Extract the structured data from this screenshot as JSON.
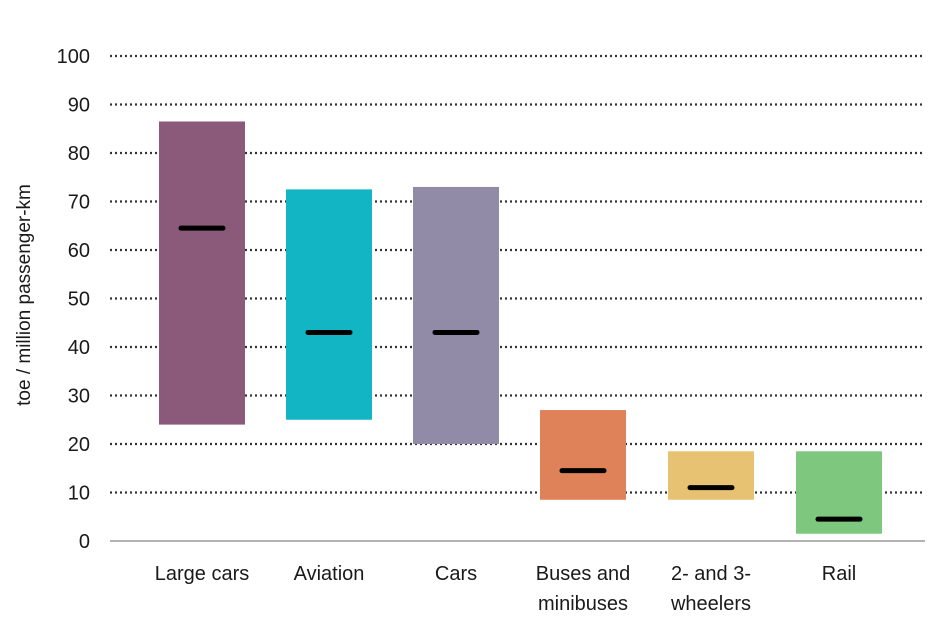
{
  "chart_data": {
    "type": "bar",
    "subtype": "range-with-midpoint",
    "ylabel": "toe / million passenger-km",
    "ylim": [
      0,
      100
    ],
    "yticks": [
      0,
      10,
      20,
      30,
      40,
      50,
      60,
      70,
      80,
      90,
      100
    ],
    "grid": "horizontal-dotted",
    "categories": [
      [
        "Large cars"
      ],
      [
        "Aviation"
      ],
      [
        "Cars"
      ],
      [
        "Buses and",
        "minibuses"
      ],
      [
        "2- and 3-",
        "wheelers"
      ],
      [
        "Rail"
      ]
    ],
    "series": [
      {
        "low": 24,
        "high": 86.5,
        "mid": 64.5,
        "color": "#8b5a7a"
      },
      {
        "low": 25,
        "high": 72.5,
        "mid": 43,
        "color": "#12b5c4"
      },
      {
        "low": 20,
        "high": 73,
        "mid": 43,
        "color": "#918ba7"
      },
      {
        "low": 8.5,
        "high": 27,
        "mid": 14.5,
        "color": "#df825a"
      },
      {
        "low": 8.5,
        "high": 18.5,
        "mid": 11,
        "color": "#e8c273"
      },
      {
        "low": 1.5,
        "high": 18.5,
        "mid": 4.5,
        "color": "#7ec77e"
      }
    ],
    "midpoint_color": "#000000",
    "grid_color": "#333333"
  }
}
